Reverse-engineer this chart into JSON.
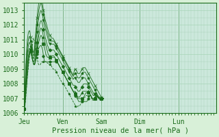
{
  "title": "",
  "xlabel": "Pression niveau de la mer( hPa )",
  "ylabel": "",
  "bg_color": "#d8f0d8",
  "plot_bg_color": "#cce8dc",
  "grid_color": "#a8d4b8",
  "line_color": "#1a6b1a",
  "ylim": [
    1006,
    1013.5
  ],
  "yticks": [
    1006,
    1007,
    1008,
    1009,
    1010,
    1011,
    1012,
    1013
  ],
  "xtick_labels": [
    "Jeu",
    "Ven",
    "Sam",
    "Dim",
    "Lun"
  ],
  "xtick_positions": [
    0,
    48,
    96,
    144,
    192
  ],
  "xmax": 240,
  "series": [
    {
      "y": [
        1006.3,
        1006.5,
        1007.0,
        1007.8,
        1008.5,
        1009.0,
        1009.5,
        1010.0,
        1010.3,
        1010.2,
        1010.5,
        1011.0,
        1011.1,
        1010.8,
        1010.5,
        1010.0,
        1009.8,
        1009.5,
        1009.3,
        1009.3,
        1009.3,
        1009.4,
        1009.5,
        1009.5,
        1009.5,
        1009.5,
        1009.5,
        1009.5,
        1009.5,
        1009.4,
        1009.4,
        1009.3,
        1009.3,
        1009.3,
        1009.2,
        1009.1,
        1009.0,
        1009.0,
        1009.0,
        1008.9,
        1008.8,
        1008.7,
        1008.6,
        1008.5,
        1008.4,
        1008.3,
        1008.2,
        1008.1,
        1008.0,
        1008.0,
        1007.9,
        1007.8,
        1007.7,
        1007.6,
        1007.5,
        1007.4,
        1007.3,
        1007.2,
        1007.1,
        1007.0,
        1006.9,
        1006.8,
        1006.7,
        1006.6,
        1006.5,
        1006.4,
        1006.4,
        1006.5,
        1006.5,
        1006.5,
        1006.6,
        1006.7,
        1006.8,
        1006.9,
        1007.0,
        1007.1,
        1007.1,
        1007.2,
        1007.2,
        1007.2,
        1007.2,
        1007.2,
        1007.2,
        1007.1,
        1007.0,
        1006.9,
        1006.9,
        1006.9,
        1007.0,
        1007.1,
        1007.2,
        1007.2,
        1007.1,
        1007.0,
        1006.9,
        1006.9,
        1007.0,
        1007.0,
        1007.0,
        1007.0
      ],
      "ls": "--",
      "marker": "*"
    },
    {
      "y": [
        1006.3,
        1006.5,
        1007.2,
        1007.8,
        1008.5,
        1009.2,
        1009.8,
        1010.0,
        1010.2,
        1010.0,
        1009.8,
        1009.5,
        1009.3,
        1009.3,
        1009.5,
        1009.8,
        1010.0,
        1010.2,
        1010.4,
        1010.5,
        1010.6,
        1010.6,
        1010.5,
        1010.3,
        1009.9,
        1009.6,
        1009.5,
        1009.5,
        1009.5,
        1009.5,
        1009.5,
        1009.5,
        1009.5,
        1009.5,
        1009.5,
        1009.5,
        1009.5,
        1009.5,
        1009.5,
        1009.5,
        1009.5,
        1009.5,
        1009.4,
        1009.3,
        1009.2,
        1009.1,
        1009.0,
        1008.9,
        1008.8,
        1008.7,
        1008.6,
        1008.5,
        1008.4,
        1008.3,
        1008.2,
        1008.1,
        1008.0,
        1007.9,
        1007.8,
        1007.7,
        1007.6,
        1007.5,
        1007.4,
        1007.3,
        1007.2,
        1007.1,
        1007.0,
        1006.9,
        1006.8,
        1006.8,
        1006.8,
        1006.8,
        1006.8,
        1006.8,
        1006.8,
        1006.8,
        1006.8,
        1006.8,
        1006.8,
        1006.9,
        1007.0,
        1007.1,
        1007.2,
        1007.2,
        1007.1,
        1007.0,
        1006.9,
        1006.9,
        1007.0,
        1007.1,
        1007.2,
        1007.2,
        1007.1,
        1007.1,
        1007.0,
        1006.9,
        1007.0,
        1007.0,
        1007.0,
        1007.0
      ],
      "ls": "-",
      "marker": "o"
    },
    {
      "y": [
        1006.3,
        1006.7,
        1007.5,
        1008.3,
        1009.0,
        1009.5,
        1010.0,
        1010.2,
        1010.3,
        1010.0,
        1009.7,
        1009.5,
        1009.3,
        1009.3,
        1009.5,
        1009.8,
        1010.2,
        1010.5,
        1010.8,
        1011.0,
        1011.2,
        1011.3,
        1011.2,
        1011.0,
        1010.7,
        1010.5,
        1010.3,
        1010.0,
        1009.9,
        1009.8,
        1009.8,
        1009.8,
        1009.8,
        1009.8,
        1009.8,
        1009.8,
        1009.8,
        1009.8,
        1009.8,
        1009.7,
        1009.6,
        1009.5,
        1009.4,
        1009.3,
        1009.2,
        1009.1,
        1009.0,
        1008.9,
        1008.8,
        1008.7,
        1008.6,
        1008.5,
        1008.4,
        1008.3,
        1008.2,
        1008.1,
        1008.0,
        1007.9,
        1007.8,
        1007.7,
        1007.6,
        1007.5,
        1007.4,
        1007.4,
        1007.3,
        1007.2,
        1007.1,
        1007.0,
        1007.0,
        1007.0,
        1007.0,
        1007.0,
        1007.0,
        1007.0,
        1007.1,
        1007.2,
        1007.3,
        1007.4,
        1007.4,
        1007.4,
        1007.4,
        1007.4,
        1007.3,
        1007.2,
        1007.1,
        1007.0,
        1007.0,
        1007.0,
        1007.0,
        1007.1,
        1007.2,
        1007.2,
        1007.1,
        1007.1,
        1007.0,
        1007.0,
        1007.0,
        1007.0,
        1007.0,
        1007.0
      ],
      "ls": "-",
      "marker": "s"
    },
    {
      "y": [
        1006.3,
        1006.9,
        1007.8,
        1008.6,
        1009.3,
        1009.8,
        1010.1,
        1010.3,
        1010.3,
        1010.0,
        1009.7,
        1009.5,
        1009.3,
        1009.4,
        1009.7,
        1010.1,
        1010.5,
        1010.9,
        1011.2,
        1011.5,
        1011.7,
        1011.8,
        1011.7,
        1011.5,
        1011.2,
        1011.0,
        1010.8,
        1010.6,
        1010.4,
        1010.2,
        1010.0,
        1009.9,
        1009.9,
        1009.9,
        1009.9,
        1009.9,
        1009.9,
        1009.9,
        1009.8,
        1009.7,
        1009.6,
        1009.5,
        1009.4,
        1009.3,
        1009.2,
        1009.1,
        1009.0,
        1008.9,
        1008.8,
        1008.7,
        1008.6,
        1008.5,
        1008.4,
        1008.3,
        1008.2,
        1008.1,
        1008.0,
        1007.9,
        1007.8,
        1007.7,
        1007.6,
        1007.5,
        1007.5,
        1007.5,
        1007.4,
        1007.3,
        1007.2,
        1007.1,
        1007.1,
        1007.1,
        1007.2,
        1007.3,
        1007.4,
        1007.5,
        1007.5,
        1007.5,
        1007.5,
        1007.5,
        1007.5,
        1007.5,
        1007.5,
        1007.4,
        1007.3,
        1007.2,
        1007.1,
        1007.0,
        1007.0,
        1007.0,
        1007.1,
        1007.2,
        1007.2,
        1007.1,
        1007.1,
        1007.0,
        1007.0,
        1007.0,
        1007.0,
        1007.0,
        1007.0,
        1007.0
      ],
      "ls": "-",
      "marker": "^"
    },
    {
      "y": [
        1006.3,
        1007.0,
        1008.0,
        1009.0,
        1009.8,
        1010.2,
        1010.4,
        1010.4,
        1010.2,
        1010.0,
        1009.8,
        1009.6,
        1009.5,
        1009.6,
        1010.0,
        1010.4,
        1010.8,
        1011.2,
        1011.6,
        1012.0,
        1012.2,
        1012.3,
        1012.2,
        1012.0,
        1011.7,
        1011.5,
        1011.2,
        1011.0,
        1010.8,
        1010.6,
        1010.5,
        1010.3,
        1010.3,
        1010.3,
        1010.3,
        1010.3,
        1010.3,
        1010.3,
        1010.2,
        1010.1,
        1010.0,
        1009.9,
        1009.8,
        1009.7,
        1009.6,
        1009.5,
        1009.4,
        1009.3,
        1009.2,
        1009.1,
        1009.0,
        1008.9,
        1008.8,
        1008.7,
        1008.6,
        1008.5,
        1008.4,
        1008.3,
        1008.2,
        1008.1,
        1008.0,
        1007.9,
        1007.9,
        1007.9,
        1007.8,
        1007.7,
        1007.6,
        1007.5,
        1007.5,
        1007.5,
        1007.6,
        1007.7,
        1007.8,
        1007.9,
        1008.0,
        1008.0,
        1008.0,
        1008.0,
        1008.0,
        1007.9,
        1007.8,
        1007.7,
        1007.6,
        1007.5,
        1007.4,
        1007.3,
        1007.2,
        1007.2,
        1007.3,
        1007.3,
        1007.2,
        1007.1,
        1007.1,
        1007.0,
        1007.0,
        1007.0,
        1007.0,
        1007.0,
        1007.0,
        1007.0
      ],
      "ls": "-",
      "marker": "D"
    },
    {
      "y": [
        1006.3,
        1007.2,
        1008.3,
        1009.3,
        1010.0,
        1010.5,
        1010.8,
        1010.8,
        1010.5,
        1010.2,
        1010.0,
        1009.8,
        1009.7,
        1010.0,
        1010.5,
        1011.0,
        1011.5,
        1012.0,
        1012.4,
        1012.7,
        1012.9,
        1013.0,
        1012.8,
        1012.6,
        1012.3,
        1012.0,
        1011.8,
        1011.6,
        1011.4,
        1011.2,
        1011.0,
        1010.8,
        1010.7,
        1010.7,
        1010.7,
        1010.7,
        1010.7,
        1010.7,
        1010.6,
        1010.5,
        1010.4,
        1010.3,
        1010.2,
        1010.1,
        1010.0,
        1009.9,
        1009.8,
        1009.7,
        1009.6,
        1009.5,
        1009.4,
        1009.3,
        1009.2,
        1009.1,
        1009.0,
        1008.9,
        1008.8,
        1008.7,
        1008.6,
        1008.5,
        1008.4,
        1008.3,
        1008.4,
        1008.4,
        1008.4,
        1008.3,
        1008.2,
        1008.1,
        1008.1,
        1008.1,
        1008.2,
        1008.3,
        1008.4,
        1008.4,
        1008.4,
        1008.4,
        1008.4,
        1008.3,
        1008.2,
        1008.1,
        1008.0,
        1007.9,
        1007.8,
        1007.7,
        1007.6,
        1007.5,
        1007.4,
        1007.3,
        1007.3,
        1007.3,
        1007.2,
        1007.1,
        1007.1,
        1007.0,
        1007.0,
        1007.0,
        1007.0,
        1007.0,
        1007.0,
        1007.0
      ],
      "ls": "-",
      "marker": "v"
    },
    {
      "y": [
        1006.3,
        1007.5,
        1008.8,
        1009.8,
        1010.5,
        1010.9,
        1011.2,
        1011.2,
        1010.9,
        1010.5,
        1010.2,
        1010.0,
        1009.9,
        1010.3,
        1010.9,
        1011.5,
        1012.0,
        1012.5,
        1012.9,
        1013.2,
        1013.4,
        1013.5,
        1013.3,
        1013.0,
        1012.7,
        1012.4,
        1012.1,
        1011.9,
        1011.7,
        1011.5,
        1011.3,
        1011.1,
        1011.0,
        1010.9,
        1010.9,
        1010.9,
        1010.9,
        1010.9,
        1010.8,
        1010.7,
        1010.6,
        1010.5,
        1010.4,
        1010.3,
        1010.2,
        1010.1,
        1010.0,
        1009.9,
        1009.8,
        1009.7,
        1009.6,
        1009.5,
        1009.4,
        1009.3,
        1009.2,
        1009.1,
        1009.0,
        1008.9,
        1008.8,
        1008.7,
        1008.6,
        1008.5,
        1008.6,
        1008.7,
        1008.7,
        1008.6,
        1008.5,
        1008.4,
        1008.4,
        1008.4,
        1008.5,
        1008.6,
        1008.7,
        1008.8,
        1008.8,
        1008.8,
        1008.8,
        1008.7,
        1008.6,
        1008.5,
        1008.4,
        1008.3,
        1008.2,
        1008.1,
        1008.0,
        1007.9,
        1007.8,
        1007.7,
        1007.6,
        1007.5,
        1007.4,
        1007.3,
        1007.2,
        1007.1,
        1007.1,
        1007.0,
        1007.0,
        1007.0,
        1007.0,
        1007.0
      ],
      "ls": "-",
      "marker": "p"
    },
    {
      "y": [
        1006.3,
        1007.8,
        1009.2,
        1010.2,
        1011.0,
        1011.4,
        1011.6,
        1011.6,
        1011.2,
        1010.8,
        1010.5,
        1010.2,
        1010.1,
        1010.5,
        1011.2,
        1011.9,
        1012.5,
        1013.0,
        1013.4,
        1013.6,
        1013.8,
        1013.9,
        1013.7,
        1013.4,
        1013.0,
        1012.7,
        1012.4,
        1012.2,
        1012.0,
        1011.8,
        1011.6,
        1011.4,
        1011.3,
        1011.2,
        1011.1,
        1011.1,
        1011.1,
        1011.0,
        1010.9,
        1010.8,
        1010.7,
        1010.6,
        1010.5,
        1010.4,
        1010.3,
        1010.2,
        1010.1,
        1010.0,
        1009.9,
        1009.8,
        1009.7,
        1009.6,
        1009.5,
        1009.4,
        1009.3,
        1009.2,
        1009.1,
        1009.0,
        1008.9,
        1008.8,
        1008.7,
        1008.6,
        1008.8,
        1009.0,
        1009.0,
        1008.9,
        1008.8,
        1008.7,
        1008.7,
        1008.7,
        1008.8,
        1008.9,
        1009.0,
        1009.1,
        1009.1,
        1009.1,
        1009.1,
        1009.0,
        1008.9,
        1008.8,
        1008.7,
        1008.6,
        1008.5,
        1008.4,
        1008.3,
        1008.2,
        1008.1,
        1008.0,
        1007.9,
        1007.8,
        1007.7,
        1007.6,
        1007.5,
        1007.4,
        1007.3,
        1007.2,
        1007.1,
        1007.1,
        1007.0,
        1007.0
      ],
      "ls": "-",
      "marker": "x"
    }
  ]
}
